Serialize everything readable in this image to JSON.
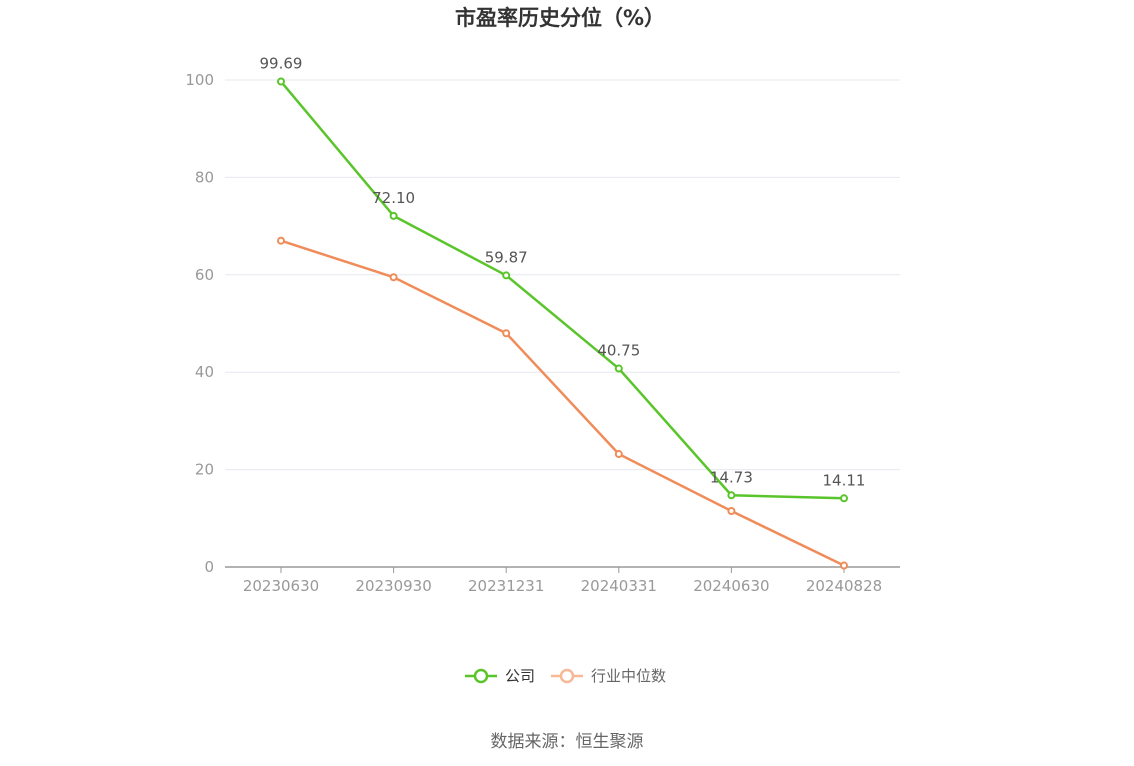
{
  "chart_data": {
    "type": "line",
    "title": "市盈率历史分位（%）",
    "categories": [
      "20230630",
      "20230930",
      "20231231",
      "20240331",
      "20240630",
      "20240828"
    ],
    "series": [
      {
        "name": "公司",
        "color": "#5ac52a",
        "values": [
          99.69,
          72.1,
          59.87,
          40.75,
          14.73,
          14.11
        ],
        "labels": [
          "99.69",
          "72.10",
          "59.87",
          "40.75",
          "14.73",
          "14.11"
        ]
      },
      {
        "name": "行业中位数",
        "color": "#f08c5a",
        "values": [
          67.0,
          59.5,
          48.0,
          23.2,
          11.5,
          0.3
        ]
      }
    ],
    "yticks": [
      0,
      20,
      40,
      60,
      80,
      100
    ],
    "ylim": [
      0,
      100
    ],
    "grid": true,
    "legend": "bottom-center"
  },
  "source": "数据来源：恒生聚源"
}
